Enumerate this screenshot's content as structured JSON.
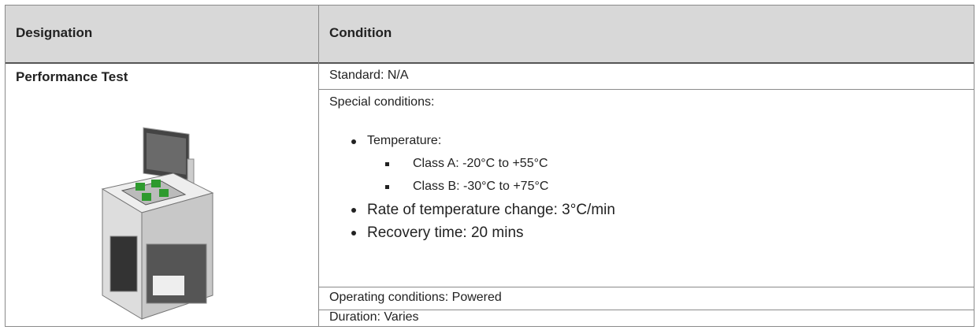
{
  "table": {
    "headers": [
      "Designation",
      "Condition"
    ],
    "designation": "Performance Test",
    "rows": [
      {
        "text": "Standard: N/A"
      },
      {
        "text": "Special conditions:",
        "items": [
          {
            "text": "Temperature:",
            "subitems": [
              "Class A: -20°C to +55°C",
              "Class B: -30°C to +75°C"
            ]
          },
          {
            "text": "Rate of temperature change: 3°C/min"
          },
          {
            "text": "Recovery time: 20 mins"
          }
        ]
      },
      {
        "text": "Operating conditions: Powered"
      },
      {
        "text": "Duration: Varies"
      }
    ]
  }
}
